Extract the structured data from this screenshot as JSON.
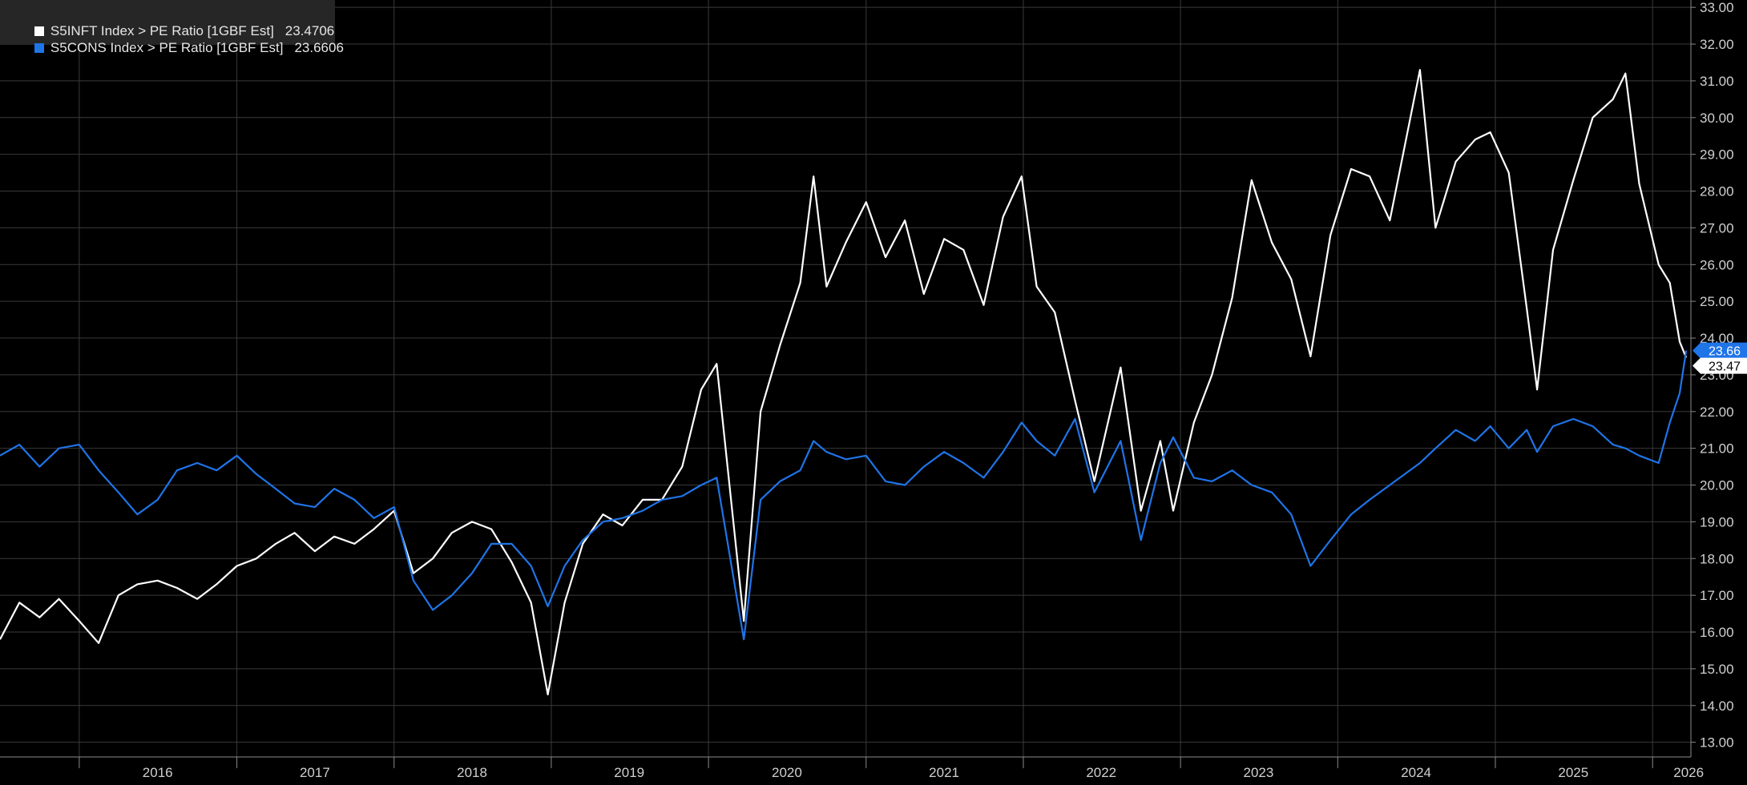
{
  "chart_data": {
    "type": "line",
    "title": "",
    "xlabel": "",
    "ylabel": "",
    "xlim": [
      "2015-07-01",
      "2026-03-31"
    ],
    "ylim": [
      12.6,
      33.2
    ],
    "grid": true,
    "legend_position": "top-left",
    "y_axis_side": "right",
    "y_ticks": [
      "13.00",
      "14.00",
      "15.00",
      "16.00",
      "17.00",
      "18.00",
      "19.00",
      "20.00",
      "21.00",
      "22.00",
      "23.00",
      "24.00",
      "25.00",
      "26.00",
      "27.00",
      "28.00",
      "29.00",
      "30.00",
      "31.00",
      "32.00",
      "33.00"
    ],
    "x_tick_labels": [
      {
        "label": "2016",
        "date": "2016-01-01"
      },
      {
        "label": "2017",
        "date": "2017-01-01"
      },
      {
        "label": "2018",
        "date": "2018-01-01"
      },
      {
        "label": "2019",
        "date": "2019-01-01"
      },
      {
        "label": "2020",
        "date": "2020-01-01"
      },
      {
        "label": "2021",
        "date": "2021-01-01"
      },
      {
        "label": "2022",
        "date": "2022-01-01"
      },
      {
        "label": "2023",
        "date": "2023-01-01"
      },
      {
        "label": "2024",
        "date": "2024-01-01"
      },
      {
        "label": "2025",
        "date": "2025-01-01"
      },
      {
        "label": "2026",
        "date": "2026-01-01"
      }
    ],
    "series": [
      {
        "name": "S5INFT Index > PE Ratio [1GBF Est]",
        "last_value": "23.4706",
        "color": "#ffffff",
        "points": [
          [
            "2015-07-01",
            15.8
          ],
          [
            "2015-08-15",
            16.8
          ],
          [
            "2015-10-01",
            16.4
          ],
          [
            "2015-11-15",
            16.9
          ],
          [
            "2016-01-01",
            16.3
          ],
          [
            "2016-02-15",
            15.7
          ],
          [
            "2016-04-01",
            17.0
          ],
          [
            "2016-05-15",
            17.3
          ],
          [
            "2016-07-01",
            17.4
          ],
          [
            "2016-08-15",
            17.2
          ],
          [
            "2016-10-01",
            16.9
          ],
          [
            "2016-11-15",
            17.3
          ],
          [
            "2017-01-01",
            17.8
          ],
          [
            "2017-02-15",
            18.0
          ],
          [
            "2017-04-01",
            18.4
          ],
          [
            "2017-05-15",
            18.7
          ],
          [
            "2017-07-01",
            18.2
          ],
          [
            "2017-08-15",
            18.6
          ],
          [
            "2017-10-01",
            18.4
          ],
          [
            "2017-11-15",
            18.8
          ],
          [
            "2018-01-01",
            19.3
          ],
          [
            "2018-02-15",
            17.6
          ],
          [
            "2018-04-01",
            18.0
          ],
          [
            "2018-05-15",
            18.7
          ],
          [
            "2018-07-01",
            19.0
          ],
          [
            "2018-08-15",
            18.8
          ],
          [
            "2018-10-01",
            17.9
          ],
          [
            "2018-11-15",
            16.8
          ],
          [
            "2018-12-24",
            14.3
          ],
          [
            "2019-02-01",
            16.8
          ],
          [
            "2019-03-15",
            18.4
          ],
          [
            "2019-05-01",
            19.2
          ],
          [
            "2019-06-15",
            18.9
          ],
          [
            "2019-08-01",
            19.6
          ],
          [
            "2019-09-15",
            19.6
          ],
          [
            "2019-11-01",
            20.5
          ],
          [
            "2019-12-15",
            22.6
          ],
          [
            "2020-01-20",
            23.3
          ],
          [
            "2020-03-23",
            16.3
          ],
          [
            "2020-05-01",
            22.0
          ],
          [
            "2020-06-15",
            23.8
          ],
          [
            "2020-08-01",
            25.5
          ],
          [
            "2020-09-01",
            28.4
          ],
          [
            "2020-10-01",
            25.4
          ],
          [
            "2020-11-15",
            26.6
          ],
          [
            "2021-01-01",
            27.7
          ],
          [
            "2021-02-15",
            26.2
          ],
          [
            "2021-04-01",
            27.2
          ],
          [
            "2021-05-15",
            25.2
          ],
          [
            "2021-07-01",
            26.7
          ],
          [
            "2021-08-15",
            26.4
          ],
          [
            "2021-10-01",
            24.9
          ],
          [
            "2021-11-15",
            27.3
          ],
          [
            "2021-12-28",
            28.4
          ],
          [
            "2022-02-01",
            25.4
          ],
          [
            "2022-03-15",
            24.7
          ],
          [
            "2022-05-01",
            22.3
          ],
          [
            "2022-06-15",
            20.1
          ],
          [
            "2022-08-15",
            23.2
          ],
          [
            "2022-10-01",
            19.3
          ],
          [
            "2022-11-15",
            21.2
          ],
          [
            "2022-12-15",
            19.3
          ],
          [
            "2023-02-01",
            21.7
          ],
          [
            "2023-03-15",
            23.0
          ],
          [
            "2023-05-01",
            25.1
          ],
          [
            "2023-06-15",
            28.3
          ],
          [
            "2023-08-01",
            26.6
          ],
          [
            "2023-09-15",
            25.6
          ],
          [
            "2023-10-30",
            23.5
          ],
          [
            "2023-12-15",
            26.8
          ],
          [
            "2024-02-01",
            28.6
          ],
          [
            "2024-03-15",
            28.4
          ],
          [
            "2024-05-01",
            27.2
          ],
          [
            "2024-07-10",
            31.3
          ],
          [
            "2024-08-15",
            27.0
          ],
          [
            "2024-10-01",
            28.8
          ],
          [
            "2024-11-15",
            29.4
          ],
          [
            "2024-12-20",
            29.6
          ],
          [
            "2025-02-01",
            28.5
          ],
          [
            "2025-03-15",
            24.8
          ],
          [
            "2025-04-08",
            22.6
          ],
          [
            "2025-05-15",
            26.4
          ],
          [
            "2025-07-01",
            28.3
          ],
          [
            "2025-08-15",
            30.0
          ],
          [
            "2025-10-01",
            30.5
          ],
          [
            "2025-10-30",
            31.2
          ],
          [
            "2025-12-01",
            28.2
          ],
          [
            "2026-01-15",
            26.0
          ],
          [
            "2026-02-10",
            25.5
          ],
          [
            "2026-03-05",
            23.9
          ],
          [
            "2026-03-20",
            23.47
          ]
        ]
      },
      {
        "name": "S5CONS Index > PE Ratio [1GBF Est]",
        "last_value": "23.6606",
        "color": "#1f74e8",
        "points": [
          [
            "2015-07-01",
            20.8
          ],
          [
            "2015-08-15",
            21.1
          ],
          [
            "2015-10-01",
            20.5
          ],
          [
            "2015-11-15",
            21.0
          ],
          [
            "2016-01-01",
            21.1
          ],
          [
            "2016-02-15",
            20.4
          ],
          [
            "2016-04-01",
            19.8
          ],
          [
            "2016-05-15",
            19.2
          ],
          [
            "2016-07-01",
            19.6
          ],
          [
            "2016-08-15",
            20.4
          ],
          [
            "2016-10-01",
            20.6
          ],
          [
            "2016-11-15",
            20.4
          ],
          [
            "2017-01-01",
            20.8
          ],
          [
            "2017-02-15",
            20.3
          ],
          [
            "2017-04-01",
            19.9
          ],
          [
            "2017-05-15",
            19.5
          ],
          [
            "2017-07-01",
            19.4
          ],
          [
            "2017-08-15",
            19.9
          ],
          [
            "2017-10-01",
            19.6
          ],
          [
            "2017-11-15",
            19.1
          ],
          [
            "2018-01-01",
            19.4
          ],
          [
            "2018-02-15",
            17.4
          ],
          [
            "2018-04-01",
            16.6
          ],
          [
            "2018-05-15",
            17.0
          ],
          [
            "2018-07-01",
            17.6
          ],
          [
            "2018-08-15",
            18.4
          ],
          [
            "2018-10-01",
            18.4
          ],
          [
            "2018-11-15",
            17.8
          ],
          [
            "2018-12-24",
            16.7
          ],
          [
            "2019-02-01",
            17.8
          ],
          [
            "2019-03-15",
            18.5
          ],
          [
            "2019-05-01",
            19.0
          ],
          [
            "2019-06-15",
            19.1
          ],
          [
            "2019-08-01",
            19.3
          ],
          [
            "2019-09-15",
            19.6
          ],
          [
            "2019-11-01",
            19.7
          ],
          [
            "2019-12-15",
            20.0
          ],
          [
            "2020-01-20",
            20.2
          ],
          [
            "2020-03-23",
            15.8
          ],
          [
            "2020-05-01",
            19.6
          ],
          [
            "2020-06-15",
            20.1
          ],
          [
            "2020-08-01",
            20.4
          ],
          [
            "2020-09-01",
            21.2
          ],
          [
            "2020-10-01",
            20.9
          ],
          [
            "2020-11-15",
            20.7
          ],
          [
            "2021-01-01",
            20.8
          ],
          [
            "2021-02-15",
            20.1
          ],
          [
            "2021-04-01",
            20.0
          ],
          [
            "2021-05-15",
            20.5
          ],
          [
            "2021-07-01",
            20.9
          ],
          [
            "2021-08-15",
            20.6
          ],
          [
            "2021-10-01",
            20.2
          ],
          [
            "2021-11-15",
            20.9
          ],
          [
            "2021-12-28",
            21.7
          ],
          [
            "2022-02-01",
            21.2
          ],
          [
            "2022-03-15",
            20.8
          ],
          [
            "2022-05-01",
            21.8
          ],
          [
            "2022-06-15",
            19.8
          ],
          [
            "2022-08-15",
            21.2
          ],
          [
            "2022-10-01",
            18.5
          ],
          [
            "2022-11-15",
            20.6
          ],
          [
            "2022-12-15",
            21.3
          ],
          [
            "2023-02-01",
            20.2
          ],
          [
            "2023-03-15",
            20.1
          ],
          [
            "2023-05-01",
            20.4
          ],
          [
            "2023-06-15",
            20.0
          ],
          [
            "2023-08-01",
            19.8
          ],
          [
            "2023-09-15",
            19.2
          ],
          [
            "2023-10-30",
            17.8
          ],
          [
            "2023-12-15",
            18.5
          ],
          [
            "2024-02-01",
            19.2
          ],
          [
            "2024-03-15",
            19.6
          ],
          [
            "2024-05-01",
            20.0
          ],
          [
            "2024-07-10",
            20.6
          ],
          [
            "2024-08-15",
            21.0
          ],
          [
            "2024-10-01",
            21.5
          ],
          [
            "2024-11-15",
            21.2
          ],
          [
            "2024-12-20",
            21.6
          ],
          [
            "2025-02-01",
            21.0
          ],
          [
            "2025-03-15",
            21.5
          ],
          [
            "2025-04-08",
            20.9
          ],
          [
            "2025-05-15",
            21.6
          ],
          [
            "2025-07-01",
            21.8
          ],
          [
            "2025-08-15",
            21.6
          ],
          [
            "2025-10-01",
            21.1
          ],
          [
            "2025-10-30",
            21.0
          ],
          [
            "2025-12-01",
            20.8
          ],
          [
            "2026-01-15",
            20.6
          ],
          [
            "2026-02-10",
            21.7
          ],
          [
            "2026-03-05",
            22.5
          ],
          [
            "2026-03-20",
            23.66
          ]
        ]
      }
    ]
  },
  "legend": {
    "items": [
      {
        "label": "S5INFT Index > PE Ratio [1GBF Est]",
        "value": "23.4706",
        "color": "#ffffff"
      },
      {
        "label": "S5CONS Index > PE Ratio [1GBF Est]",
        "value": "23.6606",
        "color": "#1f74e8"
      }
    ]
  },
  "last_value_tags": [
    {
      "text": "23.66",
      "color": "#1f74e8",
      "text_color": "#ffffff"
    },
    {
      "text": "23.47",
      "color": "#ffffff",
      "text_color": "#000000"
    }
  ]
}
